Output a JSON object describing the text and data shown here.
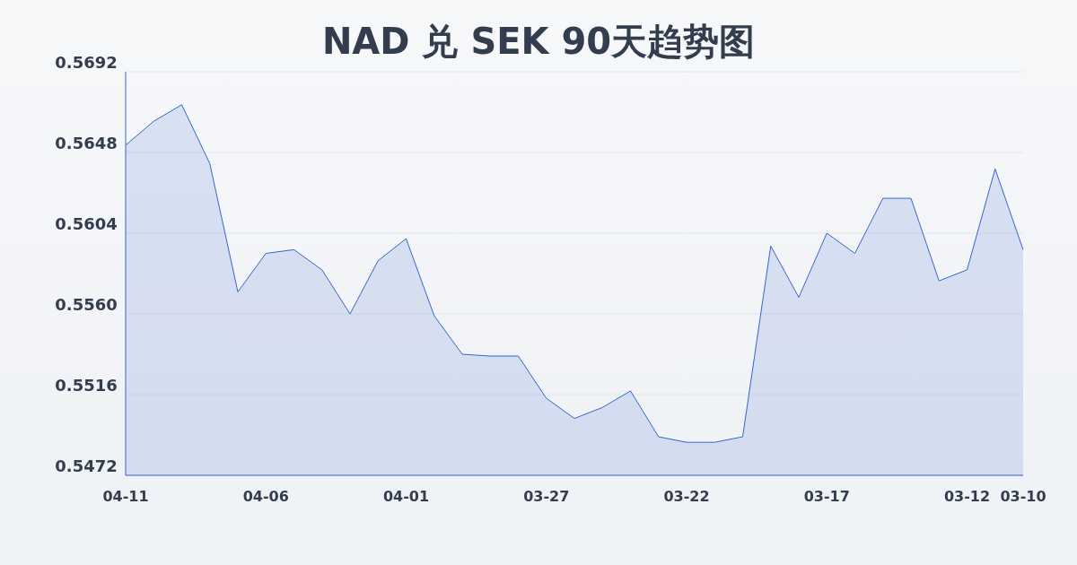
{
  "chart_data": {
    "type": "area",
    "title": "NAD 兑 SEK 90天趋势图",
    "categories": [
      "04-11",
      null,
      null,
      null,
      null,
      "04-06",
      null,
      null,
      null,
      null,
      "04-01",
      null,
      null,
      null,
      null,
      "03-27",
      null,
      null,
      null,
      null,
      "03-22",
      null,
      null,
      null,
      null,
      "03-17",
      null,
      null,
      null,
      null,
      "03-12",
      null,
      "03-10"
    ],
    "series": [
      {
        "color": "#3366cc",
        "values": [
          0.5652,
          0.5665,
          0.5674,
          0.5642,
          0.5572,
          0.5593,
          0.5595,
          0.5584,
          0.556,
          0.5589,
          0.5601,
          0.5559,
          0.5538,
          0.5537,
          0.5537,
          0.5514,
          0.5503,
          0.5509,
          0.5518,
          0.5493,
          0.549,
          0.549,
          0.5493,
          0.5597,
          0.5569,
          0.5604,
          0.5593,
          0.5623,
          0.5623,
          0.5578,
          0.5584,
          0.5639,
          0.5595
        ]
      }
    ],
    "ylim": [
      0.5472,
      0.5692
    ],
    "yticks": [
      0.5472,
      0.5516,
      {
        "value": 0.556,
        "label": "0.5560"
      },
      0.5604,
      0.5648,
      0.5692
    ],
    "grid": "y"
  }
}
